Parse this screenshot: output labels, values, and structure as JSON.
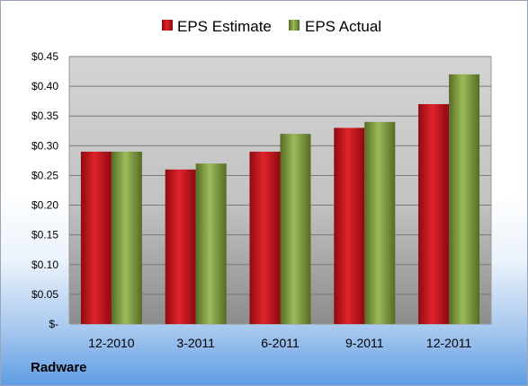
{
  "company": "Radware",
  "colors": {
    "estimate": "#c8141c",
    "actual": "#7e9c3c",
    "plot_top": "#d0d0d0",
    "plot_bottom": "#8f8f8f"
  },
  "chart_data": {
    "type": "bar",
    "title": "",
    "xlabel": "",
    "ylabel": "",
    "categories": [
      "12-2010",
      "3-2011",
      "6-2011",
      "9-2011",
      "12-2011"
    ],
    "series": [
      {
        "name": "EPS Estimate",
        "values": [
          0.29,
          0.26,
          0.29,
          0.33,
          0.37
        ]
      },
      {
        "name": "EPS Actual",
        "values": [
          0.29,
          0.27,
          0.32,
          0.34,
          0.42
        ]
      }
    ],
    "ylim": [
      0,
      0.45
    ],
    "yticks": [
      0,
      0.05,
      0.1,
      0.15,
      0.2,
      0.25,
      0.3,
      0.35,
      0.4,
      0.45
    ],
    "ytick_labels": [
      "$-",
      "$0.05",
      "$0.10",
      "$0.15",
      "$0.20",
      "$0.25",
      "$0.30",
      "$0.35",
      "$0.40",
      "$0.45"
    ],
    "grid": true,
    "legend": "top"
  }
}
